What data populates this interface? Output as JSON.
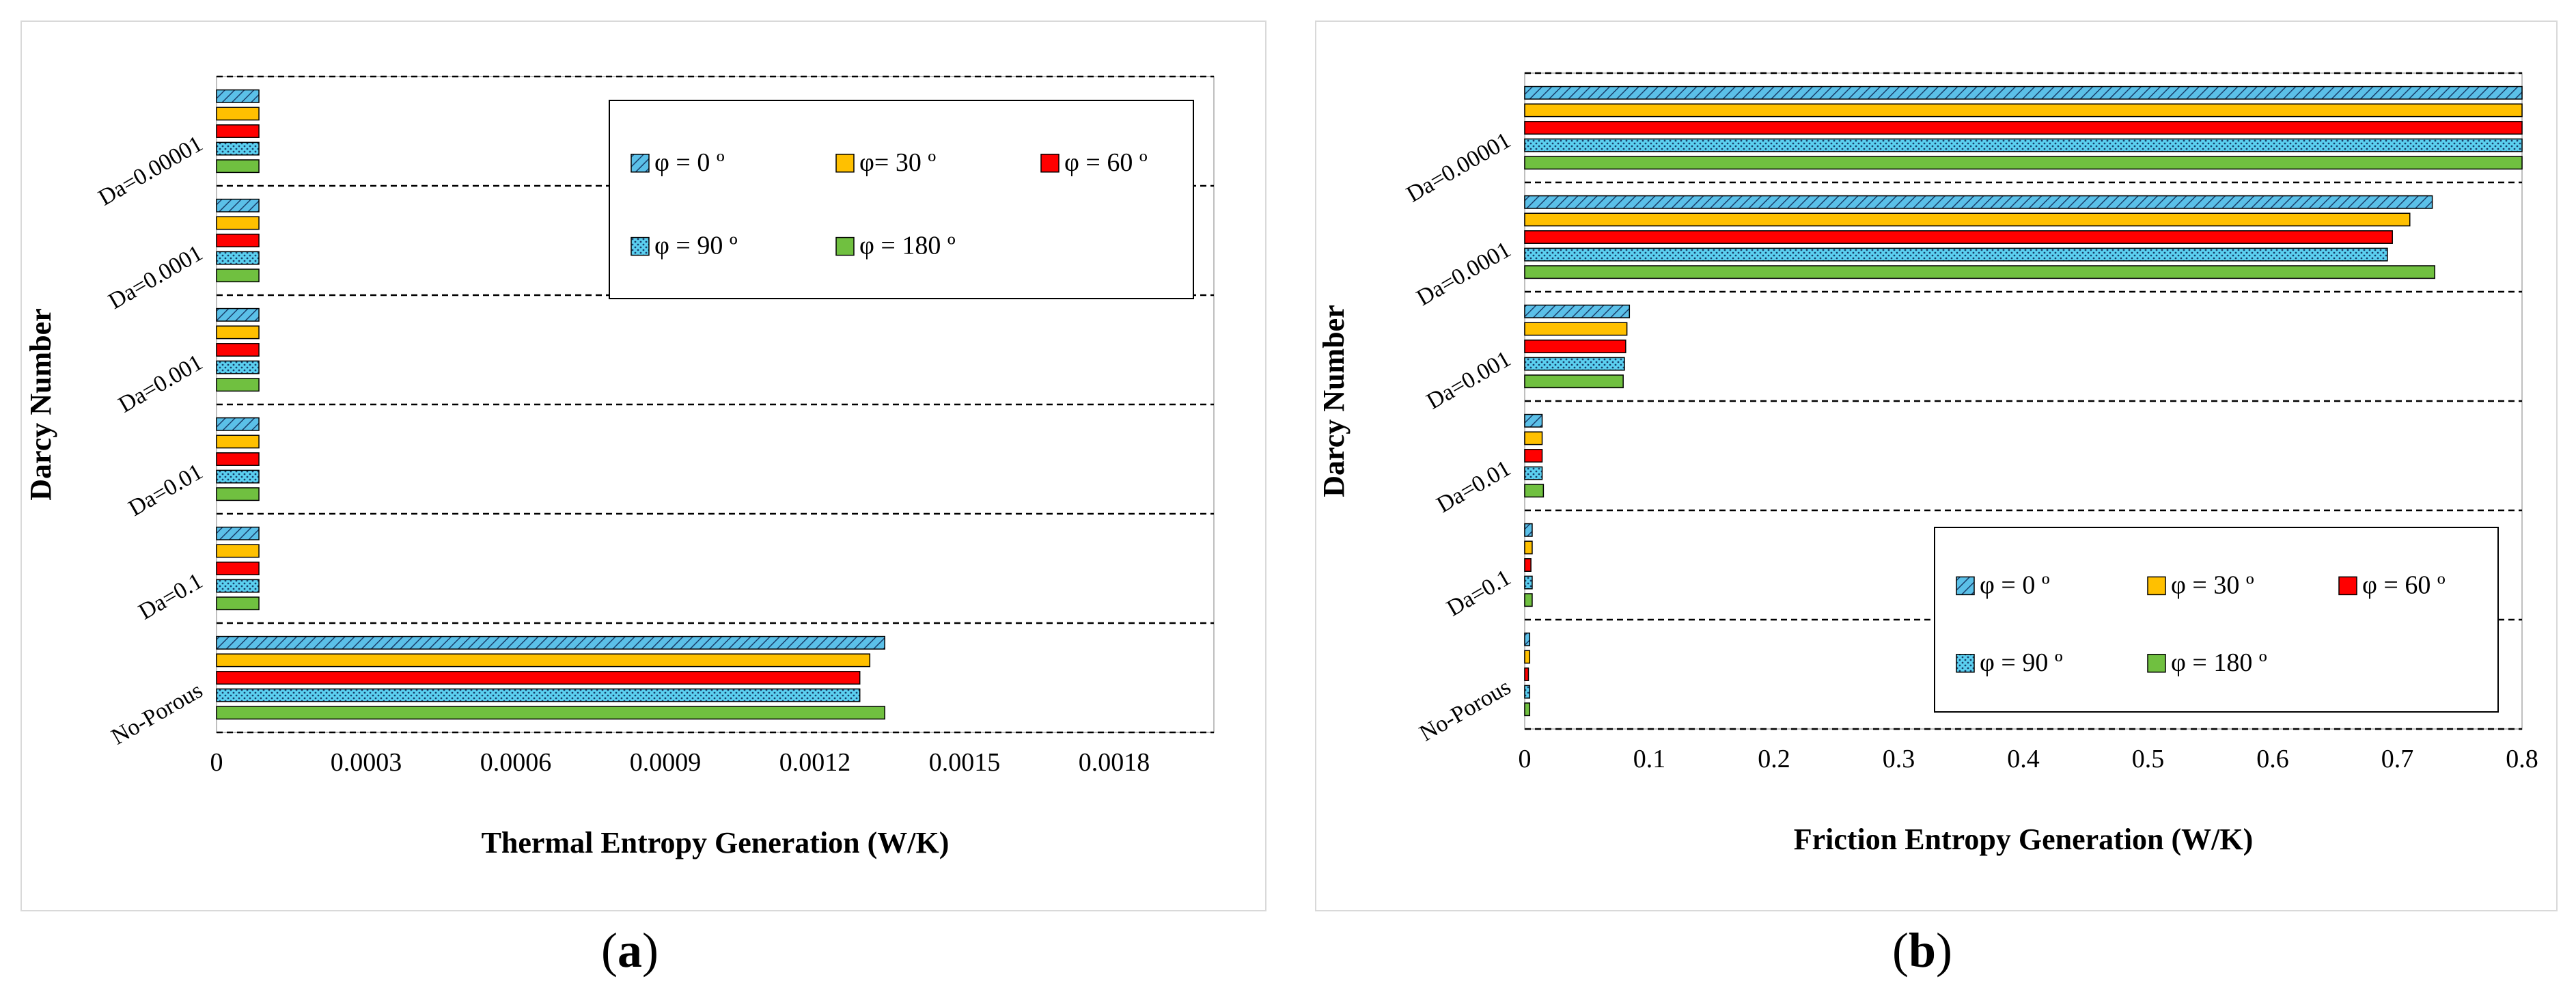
{
  "colors": {
    "phi0": "#5bc0e8",
    "phi30": "#ffc000",
    "phi60": "#ff0000",
    "phi90": "#5bd0f0",
    "phi180": "#70c040"
  },
  "chart_data": [
    {
      "type": "bar",
      "orientation": "horizontal",
      "panel": "(a)",
      "panel_letter": "a",
      "xlabel": "Thermal Entropy Generation (W/K)",
      "ylabel": "Darcy Number",
      "xlim": [
        0,
        0.002
      ],
      "xticks": [
        "0",
        "0.0003",
        "0.0006",
        "0.0009",
        "0.0012",
        "0.0015",
        "0.0018"
      ],
      "xtick_values": [
        0,
        0.0003,
        0.0006,
        0.0009,
        0.0012,
        0.0015,
        0.0018
      ],
      "categories": [
        "Da=0.00001",
        "Da=0.0001",
        "Da=0.001",
        "Da=0.01",
        "Da=0.1",
        "No-Porous"
      ],
      "legend_position": "top-right",
      "series": [
        {
          "name": "φ = 0 º",
          "values": [
            8.5e-05,
            8.5e-05,
            8.5e-05,
            8.5e-05,
            8.5e-05,
            0.00134
          ]
        },
        {
          "name": "φ= 30 º",
          "values": [
            8.5e-05,
            8.5e-05,
            8.5e-05,
            8.5e-05,
            8.5e-05,
            0.00131
          ]
        },
        {
          "name": "φ = 60 º",
          "values": [
            8.5e-05,
            8.5e-05,
            8.5e-05,
            8.5e-05,
            8.5e-05,
            0.00129
          ]
        },
        {
          "name": "φ = 90 º",
          "values": [
            8.5e-05,
            8.5e-05,
            8.5e-05,
            8.5e-05,
            8.5e-05,
            0.00129
          ]
        },
        {
          "name": "φ = 180 º",
          "values": [
            8.5e-05,
            8.5e-05,
            8.5e-05,
            8.5e-05,
            8.5e-05,
            0.00134
          ]
        }
      ]
    },
    {
      "type": "bar",
      "orientation": "horizontal",
      "panel": "(b)",
      "panel_letter": "b",
      "xlabel": "Friction Entropy Generation (W/K)",
      "ylabel": "Darcy Number",
      "xlim": [
        0,
        0.8
      ],
      "xticks": [
        "0",
        "0.1",
        "0.2",
        "0.3",
        "0.4",
        "0.5",
        "0.6",
        "0.7",
        "0.8"
      ],
      "xtick_values": [
        0,
        0.1,
        0.2,
        0.3,
        0.4,
        0.5,
        0.6,
        0.7,
        0.8
      ],
      "categories": [
        "Da=0.00001",
        "Da=0.0001",
        "Da=0.001",
        "Da=0.01",
        "Da=0.1",
        "No-Porous"
      ],
      "legend_position": "bottom-right",
      "series": [
        {
          "name": "φ = 0 º",
          "values": [
            0.8,
            0.728,
            0.084,
            0.014,
            0.006,
            0.004
          ]
        },
        {
          "name": "φ = 30 º",
          "values": [
            0.8,
            0.71,
            0.082,
            0.014,
            0.006,
            0.004
          ]
        },
        {
          "name": "φ = 60 º",
          "values": [
            0.8,
            0.696,
            0.081,
            0.014,
            0.005,
            0.003
          ]
        },
        {
          "name": "φ = 90 º",
          "values": [
            0.8,
            0.692,
            0.08,
            0.014,
            0.006,
            0.004
          ]
        },
        {
          "name": "φ = 180 º",
          "values": [
            0.8,
            0.73,
            0.079,
            0.015,
            0.006,
            0.004
          ]
        }
      ]
    }
  ]
}
